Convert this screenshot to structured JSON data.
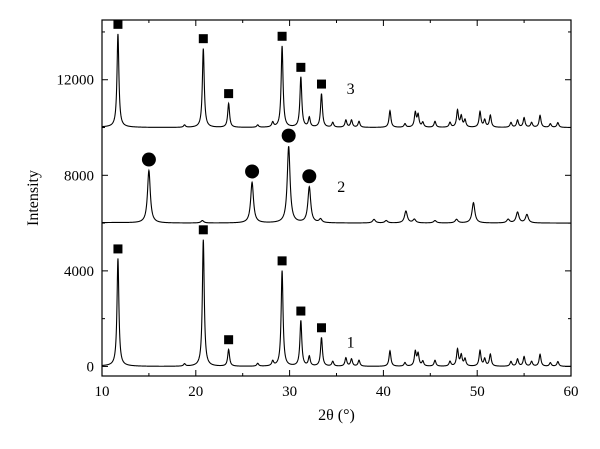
{
  "chart_data": {
    "type": "line",
    "xlabel": "2θ (°)",
    "ylabel": "Intensity",
    "xlim": [
      10,
      60
    ],
    "ylim": [
      -400,
      14500
    ],
    "x_ticks": [
      10,
      20,
      30,
      40,
      50,
      60
    ],
    "y_ticks": [
      0,
      4000,
      8000,
      12000
    ],
    "grid": false,
    "series": [
      {
        "name": "1",
        "baseline": 0,
        "marker": "square",
        "peaks": [
          {
            "x": 11.7,
            "y": 4500,
            "w": 0.12,
            "marker": true
          },
          {
            "x": 18.8,
            "y": 100,
            "w": 0.12
          },
          {
            "x": 20.8,
            "y": 5300,
            "w": 0.12,
            "marker": true
          },
          {
            "x": 23.5,
            "y": 700,
            "w": 0.12,
            "marker": true
          },
          {
            "x": 26.6,
            "y": 120,
            "w": 0.12
          },
          {
            "x": 28.2,
            "y": 200,
            "w": 0.12
          },
          {
            "x": 29.2,
            "y": 4000,
            "w": 0.12,
            "marker": true
          },
          {
            "x": 31.2,
            "y": 1900,
            "w": 0.12,
            "marker": true
          },
          {
            "x": 32.1,
            "y": 400,
            "w": 0.12
          },
          {
            "x": 33.4,
            "y": 1200,
            "w": 0.12,
            "marker": true
          },
          {
            "x": 34.6,
            "y": 200,
            "w": 0.12
          },
          {
            "x": 36.0,
            "y": 350,
            "w": 0.12
          },
          {
            "x": 36.6,
            "y": 300,
            "w": 0.12
          },
          {
            "x": 37.4,
            "y": 250,
            "w": 0.12
          },
          {
            "x": 40.7,
            "y": 650,
            "w": 0.12
          },
          {
            "x": 42.3,
            "y": 150,
            "w": 0.12
          },
          {
            "x": 43.4,
            "y": 600,
            "w": 0.12
          },
          {
            "x": 43.7,
            "y": 500,
            "w": 0.12
          },
          {
            "x": 44.2,
            "y": 200,
            "w": 0.12
          },
          {
            "x": 45.5,
            "y": 250,
            "w": 0.12
          },
          {
            "x": 47.1,
            "y": 200,
            "w": 0.12
          },
          {
            "x": 47.9,
            "y": 700,
            "w": 0.12
          },
          {
            "x": 48.3,
            "y": 450,
            "w": 0.12
          },
          {
            "x": 48.7,
            "y": 300,
            "w": 0.12
          },
          {
            "x": 50.3,
            "y": 650,
            "w": 0.12
          },
          {
            "x": 50.8,
            "y": 300,
            "w": 0.12
          },
          {
            "x": 51.4,
            "y": 500,
            "w": 0.12
          },
          {
            "x": 53.6,
            "y": 200,
            "w": 0.12
          },
          {
            "x": 54.3,
            "y": 300,
            "w": 0.12
          },
          {
            "x": 55.0,
            "y": 400,
            "w": 0.12
          },
          {
            "x": 55.8,
            "y": 200,
            "w": 0.12
          },
          {
            "x": 56.7,
            "y": 500,
            "w": 0.12
          },
          {
            "x": 57.8,
            "y": 150,
            "w": 0.12
          },
          {
            "x": 58.6,
            "y": 200,
            "w": 0.12
          }
        ]
      },
      {
        "name": "2",
        "baseline": 6000,
        "marker": "circle",
        "peaks": [
          {
            "x": 15.0,
            "y": 8200,
            "w": 0.18,
            "marker": true
          },
          {
            "x": 20.7,
            "y": 6100,
            "w": 0.18
          },
          {
            "x": 26.0,
            "y": 7700,
            "w": 0.18,
            "marker": true
          },
          {
            "x": 29.9,
            "y": 9200,
            "w": 0.18,
            "marker": true
          },
          {
            "x": 32.1,
            "y": 7500,
            "w": 0.18,
            "marker": true
          },
          {
            "x": 33.3,
            "y": 6150,
            "w": 0.18
          },
          {
            "x": 39.0,
            "y": 6150,
            "w": 0.18
          },
          {
            "x": 40.3,
            "y": 6100,
            "w": 0.18
          },
          {
            "x": 42.4,
            "y": 6500,
            "w": 0.18
          },
          {
            "x": 43.3,
            "y": 6150,
            "w": 0.18
          },
          {
            "x": 45.5,
            "y": 6100,
            "w": 0.18
          },
          {
            "x": 47.8,
            "y": 6150,
            "w": 0.18
          },
          {
            "x": 49.6,
            "y": 6850,
            "w": 0.18
          },
          {
            "x": 53.3,
            "y": 6150,
            "w": 0.18
          },
          {
            "x": 54.3,
            "y": 6450,
            "w": 0.18
          },
          {
            "x": 55.3,
            "y": 6350,
            "w": 0.18
          }
        ]
      },
      {
        "name": "3",
        "baseline": 10000,
        "marker": "square",
        "peaks": [
          {
            "x": 11.7,
            "y": 13900,
            "w": 0.12,
            "marker": true
          },
          {
            "x": 18.8,
            "y": 10100,
            "w": 0.12
          },
          {
            "x": 20.8,
            "y": 13300,
            "w": 0.12,
            "marker": true
          },
          {
            "x": 23.5,
            "y": 11000,
            "w": 0.12,
            "marker": true
          },
          {
            "x": 26.6,
            "y": 10100,
            "w": 0.12
          },
          {
            "x": 28.2,
            "y": 10200,
            "w": 0.12
          },
          {
            "x": 29.2,
            "y": 13400,
            "w": 0.12,
            "marker": true
          },
          {
            "x": 31.2,
            "y": 12100,
            "w": 0.12,
            "marker": true
          },
          {
            "x": 32.1,
            "y": 10400,
            "w": 0.12
          },
          {
            "x": 33.4,
            "y": 11400,
            "w": 0.12,
            "marker": true
          },
          {
            "x": 34.6,
            "y": 10200,
            "w": 0.12
          },
          {
            "x": 36.0,
            "y": 10300,
            "w": 0.12
          },
          {
            "x": 36.6,
            "y": 10300,
            "w": 0.12
          },
          {
            "x": 37.4,
            "y": 10250,
            "w": 0.12
          },
          {
            "x": 40.7,
            "y": 10700,
            "w": 0.12
          },
          {
            "x": 42.3,
            "y": 10150,
            "w": 0.12
          },
          {
            "x": 43.4,
            "y": 10600,
            "w": 0.12
          },
          {
            "x": 43.7,
            "y": 10500,
            "w": 0.12
          },
          {
            "x": 44.2,
            "y": 10200,
            "w": 0.12
          },
          {
            "x": 45.5,
            "y": 10250,
            "w": 0.12
          },
          {
            "x": 47.1,
            "y": 10200,
            "w": 0.12
          },
          {
            "x": 47.9,
            "y": 10700,
            "w": 0.12
          },
          {
            "x": 48.3,
            "y": 10450,
            "w": 0.12
          },
          {
            "x": 48.7,
            "y": 10300,
            "w": 0.12
          },
          {
            "x": 50.3,
            "y": 10650,
            "w": 0.12
          },
          {
            "x": 50.8,
            "y": 10300,
            "w": 0.12
          },
          {
            "x": 51.4,
            "y": 10500,
            "w": 0.12
          },
          {
            "x": 53.6,
            "y": 10200,
            "w": 0.12
          },
          {
            "x": 54.3,
            "y": 10300,
            "w": 0.12
          },
          {
            "x": 55.0,
            "y": 10400,
            "w": 0.12
          },
          {
            "x": 55.8,
            "y": 10200,
            "w": 0.12
          },
          {
            "x": 56.7,
            "y": 10500,
            "w": 0.12
          },
          {
            "x": 57.8,
            "y": 10150,
            "w": 0.12
          },
          {
            "x": 58.6,
            "y": 10200,
            "w": 0.12
          }
        ]
      }
    ]
  }
}
